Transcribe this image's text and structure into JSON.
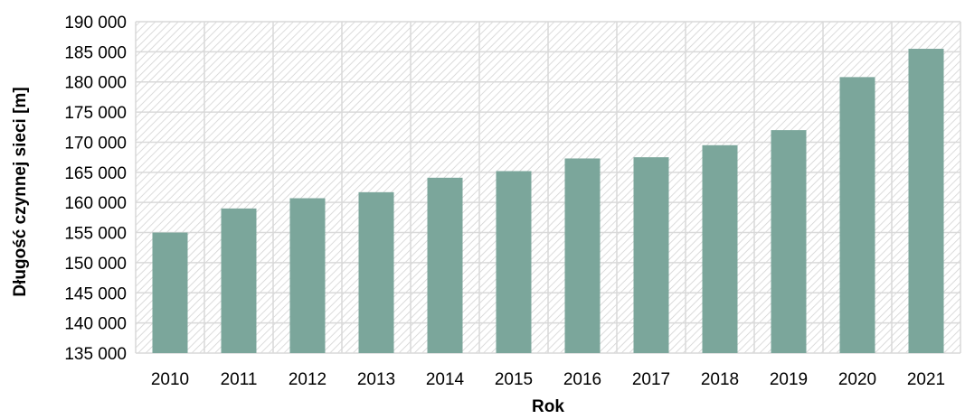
{
  "chart_data": {
    "type": "bar",
    "title": "",
    "xlabel": "Rok",
    "ylabel": "Długość czynnej sieci [m]",
    "categories": [
      "2010",
      "2011",
      "2012",
      "2013",
      "2014",
      "2015",
      "2016",
      "2017",
      "2018",
      "2019",
      "2020",
      "2021"
    ],
    "values": [
      155000,
      159000,
      160700,
      161700,
      164100,
      165200,
      167300,
      167500,
      169500,
      172000,
      180800,
      185500
    ],
    "ylim": [
      135000,
      190000
    ],
    "yticks": [
      135000,
      140000,
      145000,
      150000,
      155000,
      160000,
      165000,
      170000,
      175000,
      180000,
      185000,
      190000
    ],
    "ytick_labels": [
      "135 000",
      "140 000",
      "145 000",
      "150 000",
      "155 000",
      "160 000",
      "165 000",
      "170 000",
      "175 000",
      "180 000",
      "185 000",
      "190 000"
    ],
    "grid": true,
    "legend": "none",
    "bar_color": "#7BA69B",
    "plot_background": "hatched light gray",
    "grid_color": "#D9D9D9"
  }
}
